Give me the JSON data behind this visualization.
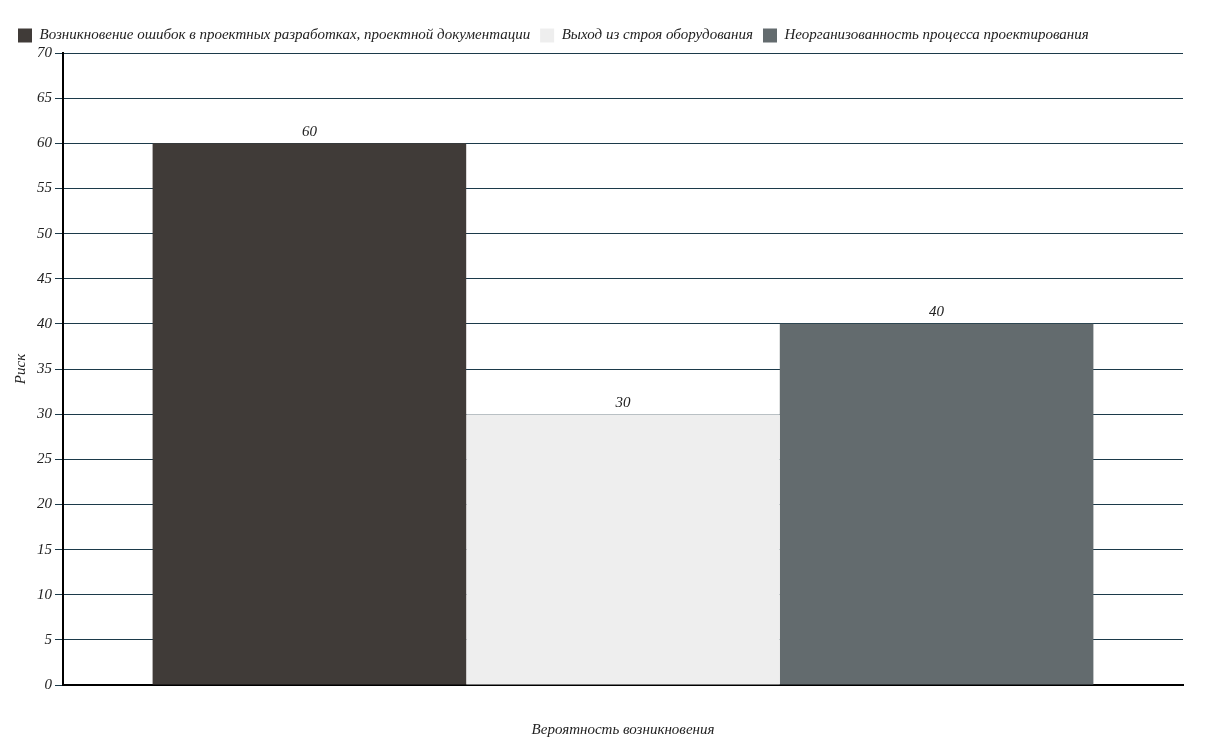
{
  "chart_data": {
    "type": "bar",
    "xlabel": "Вероятность возникновения",
    "ylabel": "Риск",
    "categories": [
      null
    ],
    "series": [
      {
        "name": "Возникновение ошибок в проектных разработках, проектной документации",
        "color": "#403b38",
        "values": [
          60
        ]
      },
      {
        "name": "Выход из строя оборудования",
        "color": "#eeeeee",
        "values": [
          30
        ]
      },
      {
        "name": "Неорганизованность процесса проектирования",
        "color": "#636b6e",
        "values": [
          40
        ]
      }
    ],
    "ylim": [
      0,
      70
    ],
    "yticks": [
      0,
      5,
      10,
      15,
      20,
      25,
      30,
      35,
      40,
      45,
      50,
      55,
      60,
      65,
      70
    ],
    "grid": "y",
    "legend": "top left",
    "data_labels": true
  }
}
